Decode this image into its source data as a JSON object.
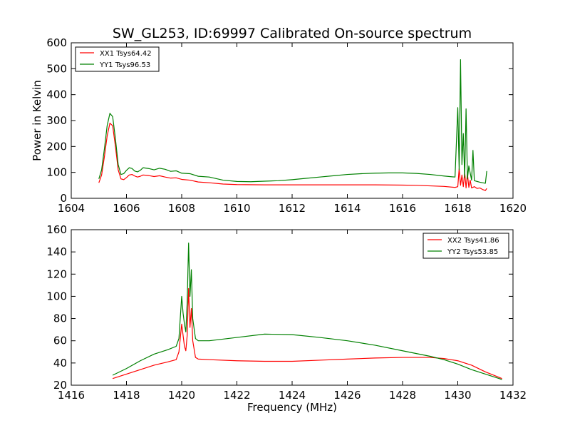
{
  "chart_data": [
    {
      "type": "line",
      "title": "SW_GL253, ID:69997 Calibrated On-source spectrum",
      "xlabel": "",
      "ylabel": "Power in Kelvin",
      "xlim": [
        1604,
        1620
      ],
      "ylim": [
        0,
        600
      ],
      "xticks": [
        1604,
        1606,
        1608,
        1610,
        1612,
        1614,
        1616,
        1618,
        1620
      ],
      "yticks": [
        0,
        100,
        200,
        300,
        400,
        500,
        600
      ],
      "legend_position": "top-left",
      "series": [
        {
          "name": "XX1 Tsys64.42",
          "color": "#ff0000",
          "points": [
            [
              1605.0,
              60
            ],
            [
              1605.1,
              90
            ],
            [
              1605.2,
              160
            ],
            [
              1605.3,
              240
            ],
            [
              1605.4,
              290
            ],
            [
              1605.5,
              280
            ],
            [
              1605.6,
              200
            ],
            [
              1605.7,
              110
            ],
            [
              1605.8,
              75
            ],
            [
              1605.9,
              72
            ],
            [
              1606.0,
              80
            ],
            [
              1606.1,
              90
            ],
            [
              1606.2,
              92
            ],
            [
              1606.3,
              86
            ],
            [
              1606.4,
              82
            ],
            [
              1606.5,
              85
            ],
            [
              1606.6,
              90
            ],
            [
              1606.8,
              88
            ],
            [
              1607.0,
              84
            ],
            [
              1607.2,
              87
            ],
            [
              1607.4,
              82
            ],
            [
              1607.6,
              78
            ],
            [
              1607.8,
              79
            ],
            [
              1608.0,
              73
            ],
            [
              1608.3,
              70
            ],
            [
              1608.6,
              63
            ],
            [
              1609.0,
              60
            ],
            [
              1609.5,
              55
            ],
            [
              1610,
              53
            ],
            [
              1611,
              52
            ],
            [
              1612,
              52
            ],
            [
              1613,
              52
            ],
            [
              1614,
              52
            ],
            [
              1615,
              52
            ],
            [
              1616,
              51
            ],
            [
              1616.5,
              50
            ],
            [
              1617,
              48
            ],
            [
              1617.5,
              46
            ],
            [
              1617.9,
              42
            ],
            [
              1618.0,
              45
            ],
            [
              1618.05,
              115
            ],
            [
              1618.1,
              50
            ],
            [
              1618.15,
              90
            ],
            [
              1618.2,
              45
            ],
            [
              1618.25,
              100
            ],
            [
              1618.3,
              40
            ],
            [
              1618.35,
              95
            ],
            [
              1618.4,
              42
            ],
            [
              1618.45,
              70
            ],
            [
              1618.5,
              40
            ],
            [
              1618.6,
              45
            ],
            [
              1618.7,
              38
            ],
            [
              1618.8,
              40
            ],
            [
              1618.9,
              34
            ],
            [
              1619.0,
              30
            ],
            [
              1619.05,
              38
            ]
          ]
        },
        {
          "name": "YY1 Tsys96.53",
          "color": "#008000",
          "points": [
            [
              1605.0,
              75
            ],
            [
              1605.1,
              110
            ],
            [
              1605.2,
              190
            ],
            [
              1605.3,
              280
            ],
            [
              1605.4,
              328
            ],
            [
              1605.5,
              315
            ],
            [
              1605.6,
              230
            ],
            [
              1605.7,
              130
            ],
            [
              1605.8,
              92
            ],
            [
              1605.9,
              95
            ],
            [
              1606.0,
              108
            ],
            [
              1606.1,
              118
            ],
            [
              1606.2,
              115
            ],
            [
              1606.3,
              105
            ],
            [
              1606.4,
              102
            ],
            [
              1606.5,
              108
            ],
            [
              1606.6,
              118
            ],
            [
              1606.8,
              115
            ],
            [
              1607.0,
              110
            ],
            [
              1607.2,
              116
            ],
            [
              1607.4,
              112
            ],
            [
              1607.6,
              104
            ],
            [
              1607.8,
              106
            ],
            [
              1608.0,
              97
            ],
            [
              1608.3,
              95
            ],
            [
              1608.6,
              85
            ],
            [
              1609.0,
              82
            ],
            [
              1609.5,
              70
            ],
            [
              1610,
              65
            ],
            [
              1610.5,
              64
            ],
            [
              1611,
              66
            ],
            [
              1611.5,
              68
            ],
            [
              1612,
              72
            ],
            [
              1612.5,
              77
            ],
            [
              1613,
              82
            ],
            [
              1613.5,
              87
            ],
            [
              1614,
              92
            ],
            [
              1614.5,
              95
            ],
            [
              1615,
              97
            ],
            [
              1615.5,
              98
            ],
            [
              1616,
              98
            ],
            [
              1616.5,
              96
            ],
            [
              1617,
              92
            ],
            [
              1617.5,
              86
            ],
            [
              1617.9,
              82
            ],
            [
              1618.0,
              350
            ],
            [
              1618.05,
              110
            ],
            [
              1618.1,
              535
            ],
            [
              1618.15,
              130
            ],
            [
              1618.2,
              250
            ],
            [
              1618.25,
              80
            ],
            [
              1618.3,
              345
            ],
            [
              1618.35,
              75
            ],
            [
              1618.4,
              125
            ],
            [
              1618.5,
              70
            ],
            [
              1618.55,
              185
            ],
            [
              1618.6,
              68
            ],
            [
              1618.7,
              65
            ],
            [
              1618.8,
              62
            ],
            [
              1618.9,
              60
            ],
            [
              1619.0,
              58
            ],
            [
              1619.05,
              105
            ]
          ]
        }
      ]
    },
    {
      "type": "line",
      "title": "",
      "xlabel": "Frequency (MHz)",
      "ylabel": "",
      "xlim": [
        1416,
        1432
      ],
      "ylim": [
        20,
        160
      ],
      "xticks": [
        1416,
        1418,
        1420,
        1422,
        1424,
        1426,
        1428,
        1430,
        1432
      ],
      "yticks": [
        20,
        40,
        60,
        80,
        100,
        120,
        140,
        160
      ],
      "legend_position": "top-right",
      "series": [
        {
          "name": "XX2 Tsys41.86",
          "color": "#ff0000",
          "points": [
            [
              1417.5,
              26
            ],
            [
              1418,
              30
            ],
            [
              1418.5,
              34
            ],
            [
              1419,
              38
            ],
            [
              1419.5,
              41
            ],
            [
              1419.8,
              43
            ],
            [
              1419.9,
              50
            ],
            [
              1420.0,
              75
            ],
            [
              1420.05,
              65
            ],
            [
              1420.1,
              55
            ],
            [
              1420.15,
              51
            ],
            [
              1420.2,
              65
            ],
            [
              1420.25,
              107
            ],
            [
              1420.3,
              72
            ],
            [
              1420.35,
              89
            ],
            [
              1420.4,
              60
            ],
            [
              1420.5,
              45
            ],
            [
              1420.6,
              43.5
            ],
            [
              1421,
              43
            ],
            [
              1422,
              42
            ],
            [
              1423,
              41.5
            ],
            [
              1424,
              41.5
            ],
            [
              1425,
              42.5
            ],
            [
              1426,
              43.5
            ],
            [
              1427,
              44.5
            ],
            [
              1428,
              45
            ],
            [
              1429,
              45
            ],
            [
              1429.5,
              44
            ],
            [
              1430,
              42
            ],
            [
              1430.5,
              38
            ],
            [
              1431,
              32
            ],
            [
              1431.5,
              27
            ],
            [
              1431.6,
              26
            ]
          ]
        },
        {
          "name": "YY2 Tsys53.85",
          "color": "#008000",
          "points": [
            [
              1417.5,
              29
            ],
            [
              1418,
              35
            ],
            [
              1418.5,
              42
            ],
            [
              1419,
              48
            ],
            [
              1419.5,
              52
            ],
            [
              1419.8,
              55
            ],
            [
              1419.9,
              62
            ],
            [
              1420.0,
              100
            ],
            [
              1420.05,
              85
            ],
            [
              1420.1,
              75
            ],
            [
              1420.15,
              68
            ],
            [
              1420.2,
              95
            ],
            [
              1420.25,
              148
            ],
            [
              1420.3,
              100
            ],
            [
              1420.35,
              124
            ],
            [
              1420.4,
              80
            ],
            [
              1420.5,
              62
            ],
            [
              1420.6,
              60
            ],
            [
              1421,
              60
            ],
            [
              1422,
              63
            ],
            [
              1423,
              66
            ],
            [
              1424,
              65.5
            ],
            [
              1425,
              63
            ],
            [
              1426,
              60
            ],
            [
              1427,
              56
            ],
            [
              1428,
              51
            ],
            [
              1429,
              46
            ],
            [
              1429.5,
              43
            ],
            [
              1430,
              39
            ],
            [
              1430.5,
              34
            ],
            [
              1431,
              30
            ],
            [
              1431.5,
              26
            ],
            [
              1431.6,
              25
            ]
          ]
        }
      ]
    }
  ]
}
